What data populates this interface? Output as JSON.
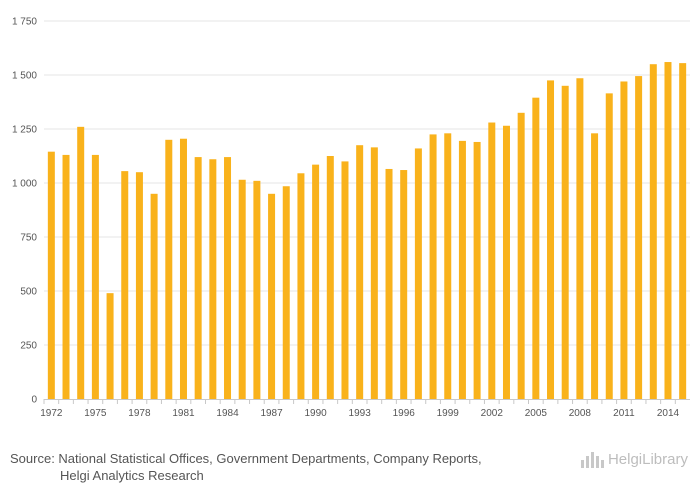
{
  "chart_data": {
    "type": "bar",
    "categories": [
      "1972",
      "1973",
      "1974",
      "1975",
      "1976",
      "1977",
      "1978",
      "1979",
      "1980",
      "1981",
      "1982",
      "1983",
      "1984",
      "1985",
      "1986",
      "1987",
      "1988",
      "1989",
      "1990",
      "1991",
      "1992",
      "1993",
      "1994",
      "1995",
      "1996",
      "1997",
      "1998",
      "1999",
      "2000",
      "2001",
      "2002",
      "2003",
      "2004",
      "2005",
      "2006",
      "2007",
      "2008",
      "2009",
      "2010",
      "2011",
      "2012",
      "2013",
      "2014",
      "2015"
    ],
    "values": [
      1145,
      1130,
      1260,
      1130,
      490,
      1055,
      1050,
      950,
      1200,
      1205,
      1120,
      1110,
      1120,
      1015,
      1010,
      950,
      985,
      1045,
      1085,
      1125,
      1100,
      1175,
      1165,
      1065,
      1060,
      1160,
      1225,
      1230,
      1195,
      1190,
      1280,
      1265,
      1325,
      1395,
      1475,
      1450,
      1485,
      1230,
      1415,
      1470,
      1495,
      1550,
      1560,
      1555
    ],
    "x_tick_labels": [
      "1972",
      "1975",
      "1978",
      "1981",
      "1984",
      "1987",
      "1990",
      "1993",
      "1996",
      "1999",
      "2002",
      "2005",
      "2008",
      "2011",
      "2014"
    ],
    "y_ticks": [
      0,
      250,
      500,
      750,
      1000,
      1250,
      1500,
      1750
    ],
    "y_tick_labels": [
      "0",
      "250",
      "500",
      "750",
      "1 000",
      "1 250",
      "1 500",
      "1 750"
    ],
    "ylim": [
      0,
      1750
    ],
    "grid": true,
    "title": "",
    "xlabel": "",
    "ylabel": "",
    "bar_color": "#f9b21b"
  },
  "footer": {
    "source_line1": "Source: National Statistical Offices, Government Departments, Company Reports,",
    "source_line2": "Helgi Analytics Research",
    "logo_text": "HelgiLibrary"
  }
}
